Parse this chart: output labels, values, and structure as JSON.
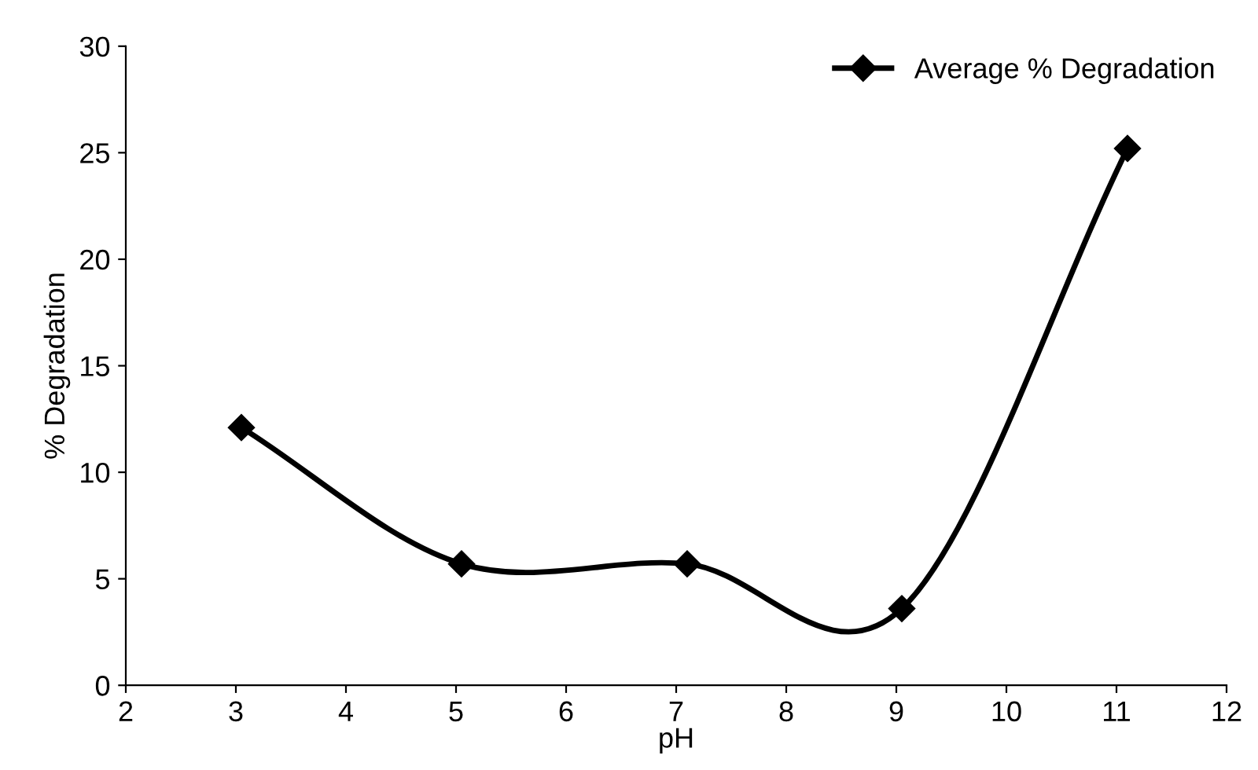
{
  "chart_data": {
    "type": "line",
    "xlabel": "pH",
    "ylabel": "% Degradation",
    "x": [
      3.05,
      5.05,
      7.1,
      9.05,
      11.1
    ],
    "series": [
      {
        "name": "Average % Degradation",
        "color": "#000000",
        "values": [
          12.1,
          5.7,
          5.7,
          3.6,
          25.2
        ]
      }
    ],
    "xlim": [
      2,
      12
    ],
    "xticks": [
      2,
      3,
      4,
      5,
      6,
      7,
      8,
      9,
      10,
      11,
      12
    ],
    "ylim": [
      0,
      30
    ],
    "yticks": [
      0,
      5,
      10,
      15,
      20,
      25,
      30
    ],
    "marker": "diamond",
    "line_style": "solid",
    "grid": false,
    "legend": "top right"
  }
}
